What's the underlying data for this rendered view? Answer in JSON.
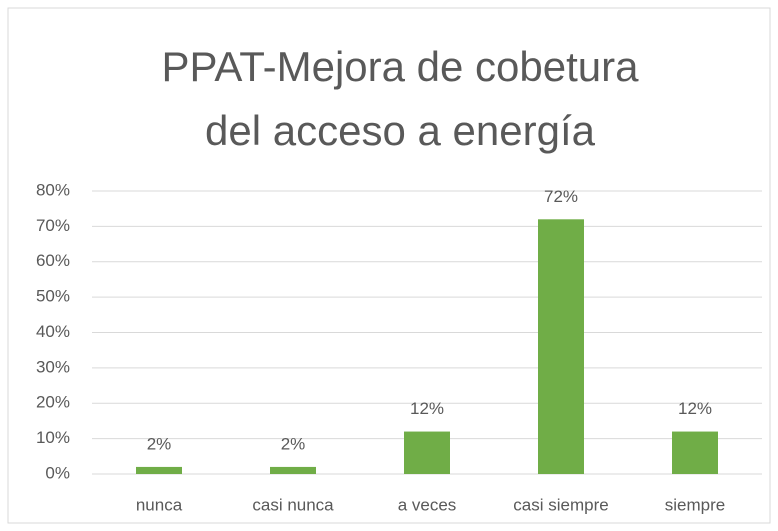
{
  "chart_data": {
    "type": "bar",
    "title": [
      "PPAT-Mejora de cobetura",
      "del acceso a energía"
    ],
    "categories": [
      "nunca",
      "casi nunca",
      "a veces",
      "casi siempre",
      "siempre"
    ],
    "values": [
      2,
      2,
      12,
      72,
      12
    ],
    "value_labels": [
      "2%",
      "2%",
      "12%",
      "72%",
      "12%"
    ],
    "color": "#70ad47",
    "ylim": [
      0,
      80
    ],
    "yticks": [
      {
        "value": 0,
        "label": "0%"
      },
      {
        "value": 10,
        "label": "10%"
      },
      {
        "value": 20,
        "label": "20%"
      },
      {
        "value": 30,
        "label": "30%"
      },
      {
        "value": 40,
        "label": "40%"
      },
      {
        "value": 50,
        "label": "50%"
      },
      {
        "value": 60,
        "label": "60%"
      },
      {
        "value": 70,
        "label": "70%"
      },
      {
        "value": 80,
        "label": "80%"
      }
    ],
    "grid": true
  }
}
